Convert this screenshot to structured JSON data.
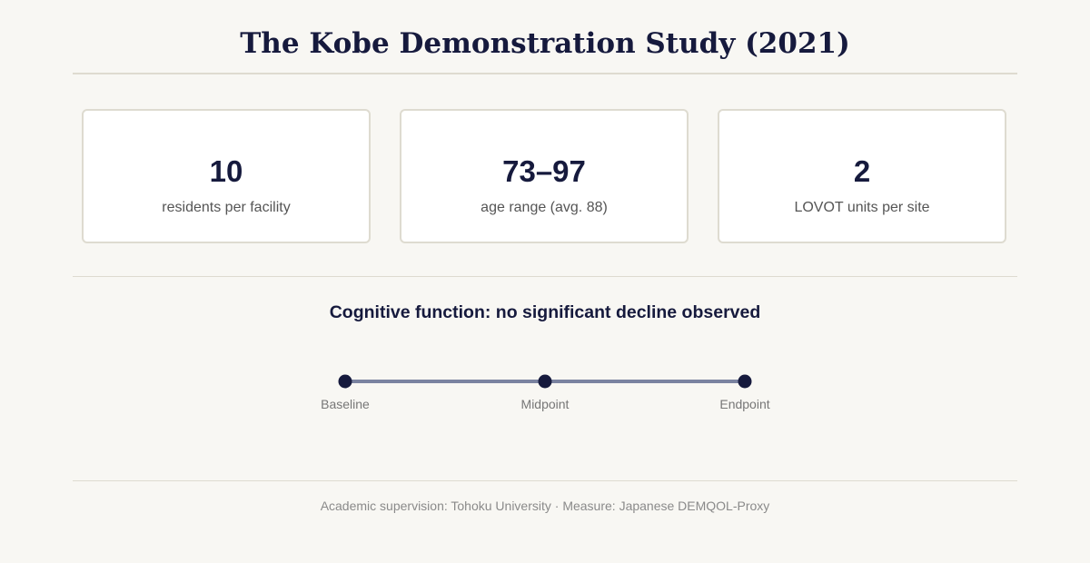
{
  "page": {
    "title": "The Kobe Demonstration Study (2021)"
  },
  "stats": [
    {
      "value": "10",
      "label": "residents per facility"
    },
    {
      "value": "73–97",
      "label": "age range (avg. 88)"
    },
    {
      "value": "2",
      "label": "LOVOT units per site"
    }
  ],
  "cognitive": {
    "heading": "Cognitive function: no significant decline observed",
    "timepoints": [
      {
        "label": "Baseline"
      },
      {
        "label": "Midpoint"
      },
      {
        "label": "Endpoint"
      }
    ],
    "colors": {
      "line": "#7a83a0",
      "dot": "#161a3d"
    }
  },
  "footer": {
    "text": "Academic supervision: Tohoku University · Measure: Japanese DEMQOL-Proxy"
  }
}
